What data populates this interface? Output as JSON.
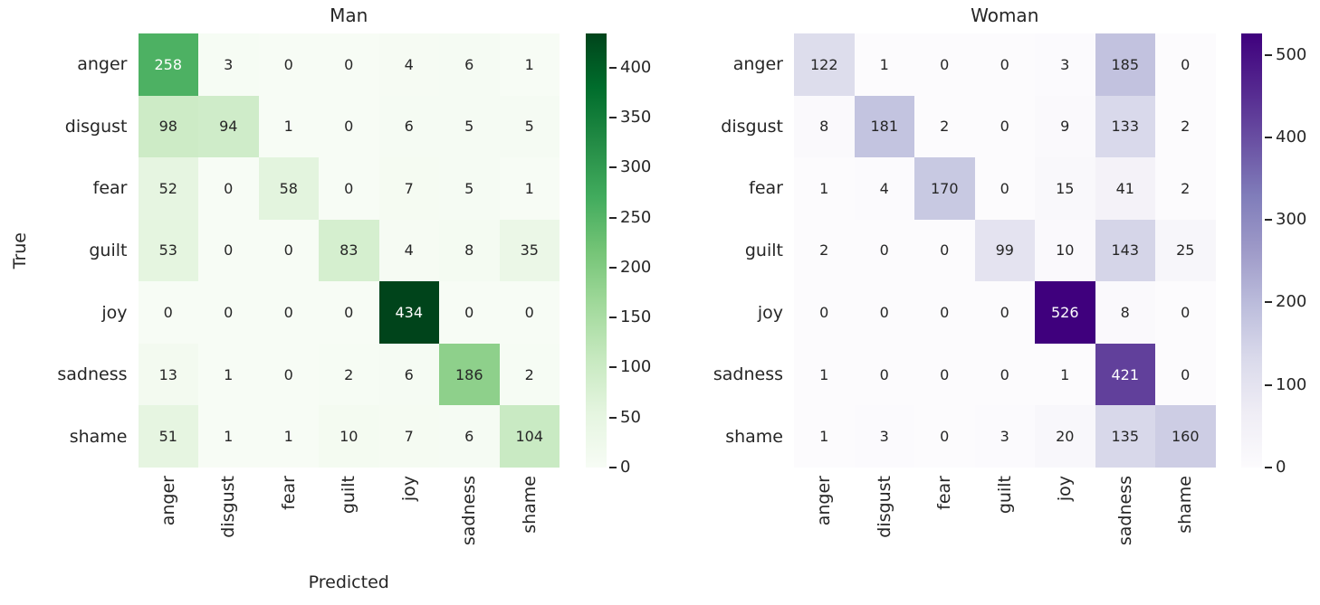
{
  "style": {
    "background": "#ffffff",
    "text_color": "#262626",
    "annot_light_color": "#ffffff"
  },
  "chart_data": [
    {
      "type": "heatmap",
      "title": "Man",
      "xlabel": "Predicted",
      "ylabel": "True",
      "categories": [
        "anger",
        "disgust",
        "fear",
        "guilt",
        "joy",
        "sadness",
        "shame"
      ],
      "matrix": [
        [
          258,
          3,
          0,
          0,
          4,
          6,
          1
        ],
        [
          98,
          94,
          1,
          0,
          6,
          5,
          5
        ],
        [
          52,
          0,
          58,
          0,
          7,
          5,
          1
        ],
        [
          53,
          0,
          0,
          83,
          4,
          8,
          35
        ],
        [
          0,
          0,
          0,
          0,
          434,
          0,
          0
        ],
        [
          13,
          1,
          0,
          2,
          6,
          186,
          2
        ],
        [
          51,
          1,
          1,
          10,
          7,
          6,
          104
        ]
      ],
      "vmin": 0,
      "vmax": 434,
      "colormap": "Greens",
      "colormap_stops": [
        "#f7fcf5",
        "#e5f5e0",
        "#c7e9c0",
        "#a1d99b",
        "#74c476",
        "#41ab5d",
        "#238b45",
        "#006d2c",
        "#00441b"
      ],
      "colorbar_ticks": [
        0,
        50,
        100,
        150,
        200,
        250,
        300,
        350,
        400
      ],
      "legend_position": "right-colorbar",
      "grid": false,
      "annotated": true
    },
    {
      "type": "heatmap",
      "title": "Woman",
      "xlabel": "",
      "ylabel": "",
      "categories": [
        "anger",
        "disgust",
        "fear",
        "guilt",
        "joy",
        "sadness",
        "shame"
      ],
      "matrix": [
        [
          122,
          1,
          0,
          0,
          3,
          185,
          0
        ],
        [
          8,
          181,
          2,
          0,
          9,
          133,
          2
        ],
        [
          1,
          4,
          170,
          0,
          15,
          41,
          2
        ],
        [
          2,
          0,
          0,
          99,
          10,
          143,
          25
        ],
        [
          0,
          0,
          0,
          0,
          526,
          8,
          0
        ],
        [
          1,
          0,
          0,
          0,
          1,
          421,
          0
        ],
        [
          1,
          3,
          0,
          3,
          20,
          135,
          160
        ]
      ],
      "vmin": 0,
      "vmax": 526,
      "colormap": "Purples",
      "colormap_stops": [
        "#fcfbfd",
        "#efedf5",
        "#dadaeb",
        "#bcbddc",
        "#9e9ac8",
        "#807dba",
        "#6a51a3",
        "#54278f",
        "#3f007d"
      ],
      "colorbar_ticks": [
        0,
        100,
        200,
        300,
        400,
        500
      ],
      "legend_position": "right-colorbar",
      "grid": false,
      "annotated": true
    }
  ]
}
